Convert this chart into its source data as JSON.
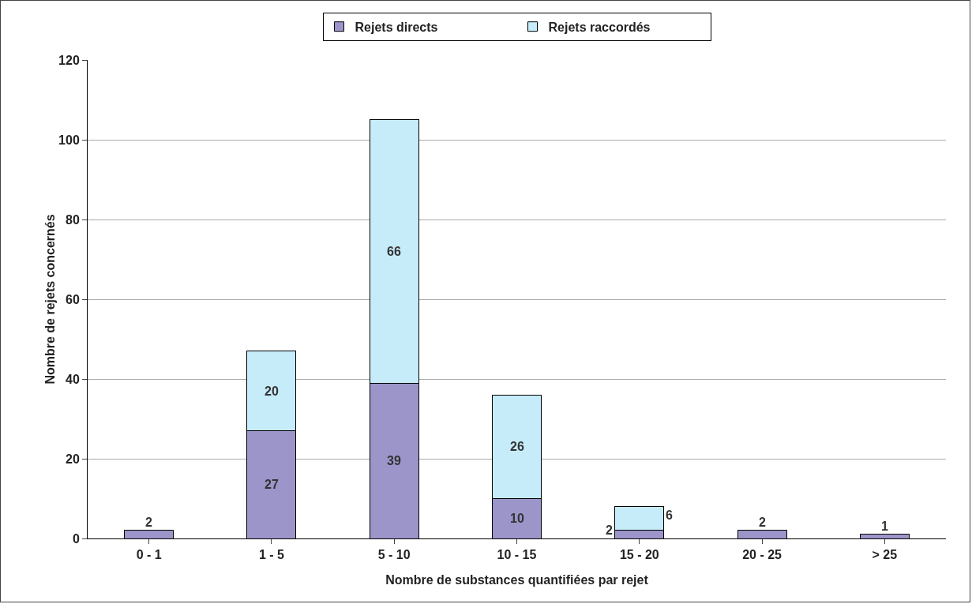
{
  "chart_data": {
    "type": "bar",
    "stacked": true,
    "xlabel": "Nombre de substances quantifiées par rejet",
    "ylabel": "Nombre de rejets concernés",
    "categories": [
      "0 - 1",
      "1 - 5",
      "5 - 10",
      "10 - 15",
      "15 - 20",
      "20 - 25",
      "> 25"
    ],
    "series": [
      {
        "name": "Rejets directs",
        "color": "#9b95c9",
        "values": [
          2,
          27,
          39,
          10,
          2,
          2,
          1
        ]
      },
      {
        "name": "Rejets raccordés",
        "color": "#c6ebf9",
        "values": [
          null,
          20,
          66,
          26,
          6,
          null,
          null
        ]
      }
    ],
    "ylim": [
      0,
      120
    ],
    "yticks": [
      0,
      20,
      40,
      60,
      80,
      100,
      120
    ],
    "grid": "y",
    "legend": "top",
    "data_labels": true
  }
}
